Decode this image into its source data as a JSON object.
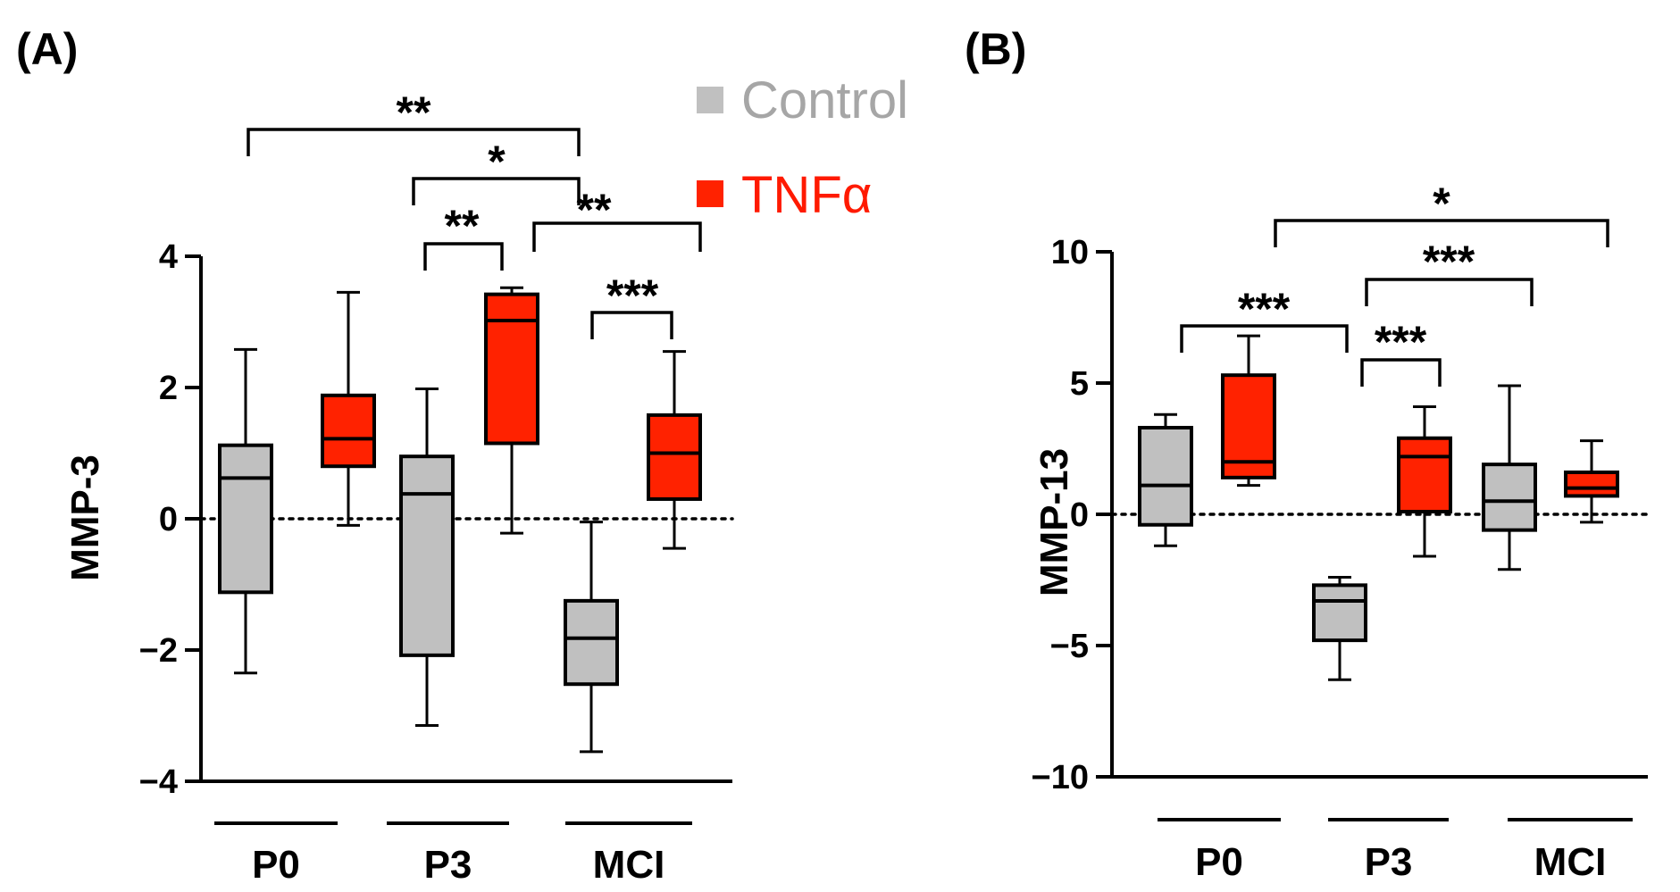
{
  "legend": [
    {
      "label": "Control",
      "color": "#c0c0c0",
      "text_color": "#a6a6a6"
    },
    {
      "label": "TNFα",
      "color": "#ff2200",
      "text_color": "#ff1a00"
    }
  ],
  "chart_data": [
    {
      "panel": "(A)",
      "type": "box",
      "ylabel": "MMP-3",
      "ylim": [
        -4,
        4
      ],
      "yticks": [
        4,
        2,
        0,
        -2,
        -4
      ],
      "ytick_labels": [
        "4",
        "2",
        "0",
        "−2",
        "−4"
      ],
      "reference_line": 0,
      "groups": [
        "P0",
        "P3",
        "MCI"
      ],
      "series": [
        "Control",
        "TNFα"
      ],
      "boxes": [
        {
          "group": "P0",
          "series": "Control",
          "min": -2.35,
          "q1": -1.12,
          "median": 0.62,
          "q3": 1.12,
          "max": 2.58
        },
        {
          "group": "P0",
          "series": "TNFα",
          "min": -0.1,
          "q1": 0.8,
          "median": 1.22,
          "q3": 1.88,
          "max": 3.45
        },
        {
          "group": "P3",
          "series": "Control",
          "min": -3.15,
          "q1": -2.08,
          "median": 0.38,
          "q3": 0.95,
          "max": 1.98
        },
        {
          "group": "P3",
          "series": "TNFα",
          "min": -0.22,
          "q1": 1.15,
          "median": 3.02,
          "q3": 3.42,
          "max": 3.52
        },
        {
          "group": "MCI",
          "series": "Control",
          "min": -3.55,
          "q1": -2.52,
          "median": -1.82,
          "q3": -1.25,
          "max": -0.05
        },
        {
          "group": "MCI",
          "series": "TNFα",
          "min": -0.45,
          "q1": 0.3,
          "median": 1.0,
          "q3": 1.58,
          "max": 2.55
        }
      ],
      "significance": [
        {
          "label": "**",
          "from": "P0 Control",
          "to": "MCI Control"
        },
        {
          "label": "*",
          "from": "P3 Control",
          "to": "MCI Control"
        },
        {
          "label": "**",
          "from": "P3 Control",
          "to": "P3 TNFα"
        },
        {
          "label": "**",
          "from": "P3 TNFα",
          "to": "MCI TNFα"
        },
        {
          "label": "***",
          "from": "MCI Control",
          "to": "MCI TNFα"
        }
      ]
    },
    {
      "panel": "(B)",
      "type": "box",
      "ylabel": "MMP-13",
      "ylim": [
        -10,
        10
      ],
      "yticks": [
        10,
        5,
        0,
        -5,
        -10
      ],
      "ytick_labels": [
        "10",
        "5",
        "0",
        "−5",
        "−10"
      ],
      "reference_line": 0,
      "groups": [
        "P0",
        "P3",
        "MCI"
      ],
      "series": [
        "Control",
        "TNFα"
      ],
      "boxes": [
        {
          "group": "P0",
          "series": "Control",
          "min": -1.2,
          "q1": -0.4,
          "median": 1.1,
          "q3": 3.3,
          "max": 3.8
        },
        {
          "group": "P0",
          "series": "TNFα",
          "min": 1.1,
          "q1": 1.4,
          "median": 2.0,
          "q3": 5.3,
          "max": 6.8
        },
        {
          "group": "P3",
          "series": "Control",
          "min": -6.3,
          "q1": -4.8,
          "median": -3.3,
          "q3": -2.7,
          "max": -2.4
        },
        {
          "group": "P3",
          "series": "TNFα",
          "min": -1.6,
          "q1": 0.1,
          "median": 2.2,
          "q3": 2.9,
          "max": 4.1
        },
        {
          "group": "MCI",
          "series": "Control",
          "min": -2.1,
          "q1": -0.6,
          "median": 0.5,
          "q3": 1.9,
          "max": 4.9
        },
        {
          "group": "MCI",
          "series": "TNFα",
          "min": -0.3,
          "q1": 0.7,
          "median": 1.0,
          "q3": 1.6,
          "max": 2.8
        }
      ],
      "significance": [
        {
          "label": "*",
          "from": "P0 TNFα",
          "to": "MCI TNFα"
        },
        {
          "label": "***",
          "from": "P3 Control",
          "to": "MCI Control"
        },
        {
          "label": "***",
          "from": "P0 Control",
          "to": "P3 Control"
        },
        {
          "label": "***",
          "from": "P3 Control",
          "to": "P3 TNFα"
        }
      ]
    }
  ]
}
